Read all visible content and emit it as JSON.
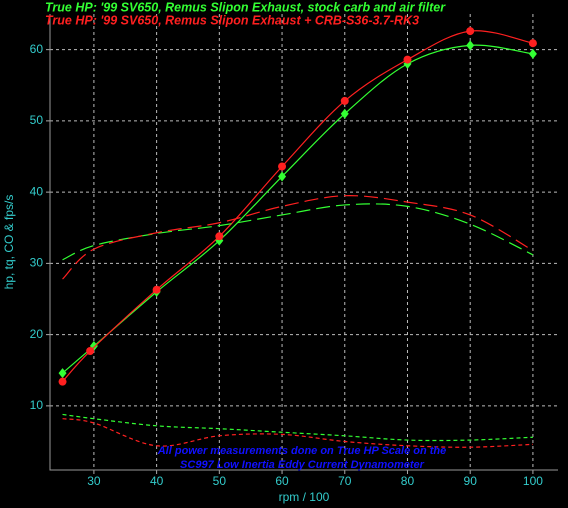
{
  "chart_data": {
    "type": "line",
    "headings": [
      {
        "text": "True HP: '99 SV650, Remus Slipon Exhaust, stock carb and air filter",
        "color": "#33ff33"
      },
      {
        "text": "True HP: '99 SV650, Remus Slipon Exhaust + CRB-S36-3.7-RK3",
        "color": "#ff2020"
      }
    ],
    "x_label": "rpm / 100",
    "y_label": "hp, tq, CO & fps/s",
    "annotation": [
      "All power measurements done on True HP Scale on the",
      "SC997 Low Inertia Eddy Current Dynamometer"
    ],
    "annotation_color": "#1010ff",
    "axis_label_color": "#33cccc",
    "grid": true,
    "xlim": [
      23,
      104
    ],
    "ylim": [
      1,
      65
    ],
    "xticks": [
      30,
      40,
      50,
      60,
      70,
      80,
      90,
      100
    ],
    "yticks": [
      10,
      20,
      30,
      40,
      50,
      60
    ],
    "series": [
      {
        "color": "#33ff33",
        "dash": "none",
        "markers": true,
        "x": [
          25,
          30,
          40,
          50,
          60,
          70,
          80,
          90,
          100
        ],
        "values": [
          14.6,
          18.4,
          26,
          33.2,
          42.2,
          51,
          58,
          60.6,
          59.4
        ]
      },
      {
        "color": "#ff2020",
        "dash": "none",
        "markers": true,
        "x": [
          25,
          29.4,
          40,
          50,
          60,
          70,
          80,
          90,
          100
        ],
        "values": [
          13.4,
          17.7,
          26.3,
          33.8,
          43.6,
          52.8,
          58.6,
          62.6,
          60.9
        ]
      },
      {
        "color": "#33ff33",
        "dash": "14,6",
        "markers": false,
        "x": [
          25,
          30,
          40,
          50,
          60,
          70,
          80,
          90,
          100
        ],
        "values": [
          30.5,
          32.5,
          34.2,
          35.3,
          36.8,
          38.2,
          38,
          35.5,
          31.2
        ]
      },
      {
        "color": "#ff2020",
        "dash": "14,6",
        "markers": false,
        "x": [
          25,
          30,
          40,
          50,
          60,
          70,
          80,
          90,
          100
        ],
        "values": [
          27.8,
          32,
          34.3,
          35.7,
          38,
          39.5,
          38.6,
          36.8,
          31.8
        ]
      },
      {
        "color": "#33ff33",
        "dash": "4,3",
        "markers": false,
        "x": [
          25,
          30,
          40,
          50,
          60,
          70,
          80,
          90,
          100
        ],
        "values": [
          8.8,
          8.2,
          7.2,
          6.8,
          6.3,
          5.8,
          5.2,
          5.2,
          5.6
        ]
      },
      {
        "color": "#ff2020",
        "dash": "4,3",
        "markers": false,
        "x": [
          25,
          30,
          40,
          50,
          60,
          70,
          80,
          90,
          100
        ],
        "values": [
          8.2,
          7.6,
          4.4,
          5.8,
          6,
          5,
          4.4,
          4.2,
          4.6
        ]
      }
    ]
  }
}
